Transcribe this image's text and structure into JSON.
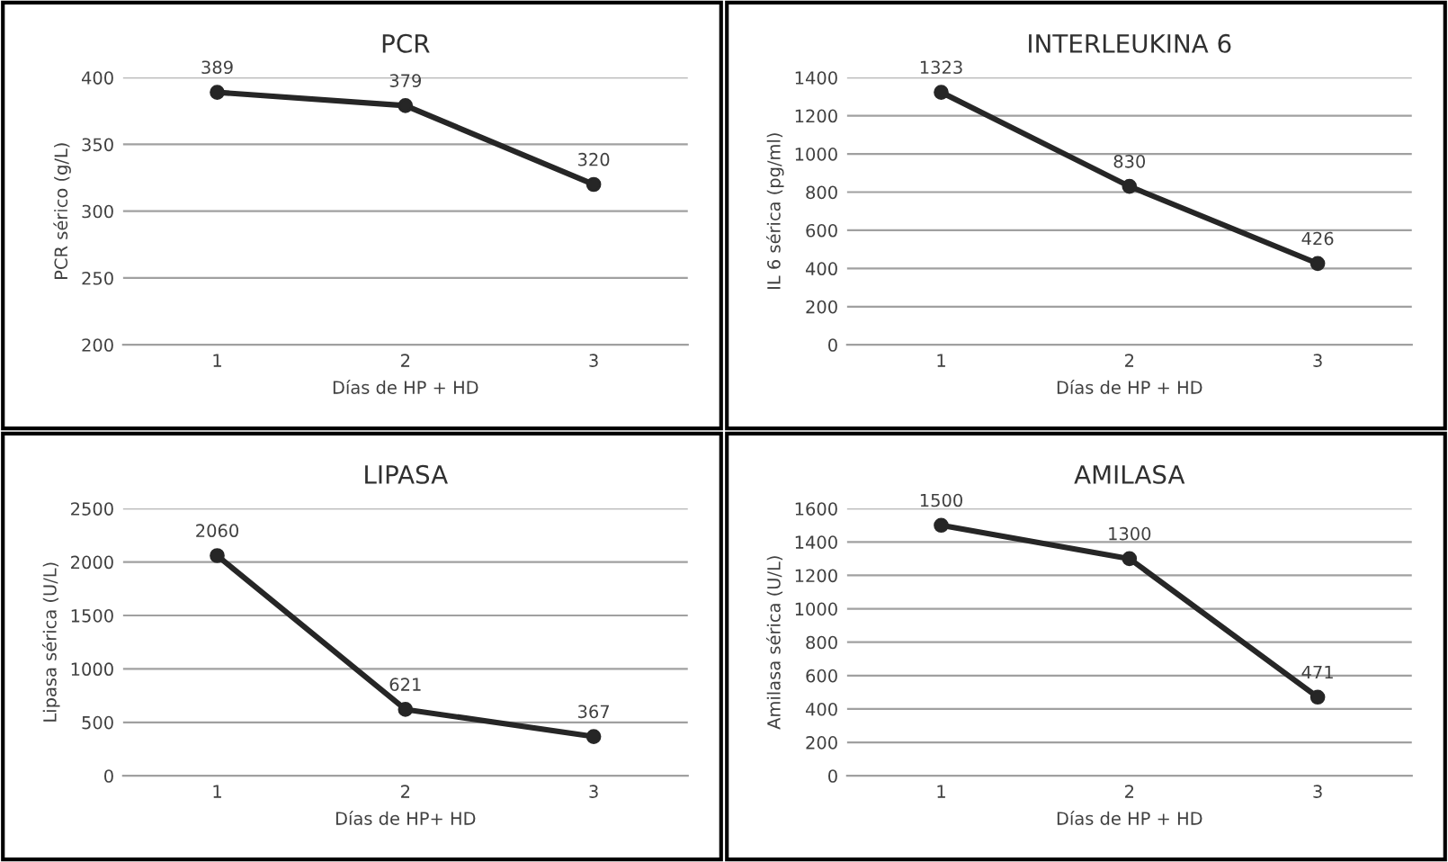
{
  "chart_data": [
    {
      "type": "line",
      "title": "PCR",
      "xlabel": "Días de HP + HD",
      "ylabel": "PCR sérico (g/L)",
      "categories": [
        "1",
        "2",
        "3"
      ],
      "series": [
        {
          "color": "#262626",
          "values": [
            389,
            379,
            320
          ]
        }
      ],
      "ylim": [
        200,
        400
      ],
      "yticks": [
        200,
        250,
        300,
        350,
        400
      ],
      "grid": "y",
      "marker": "circle",
      "data_labels": true
    },
    {
      "type": "line",
      "title": "INTERLEUKINA 6",
      "xlabel": "Días de HP + HD",
      "ylabel": "IL 6 sérica (pg/ml)",
      "categories": [
        "1",
        "2",
        "3"
      ],
      "series": [
        {
          "color": "#262626",
          "values": [
            1323,
            830,
            426
          ]
        }
      ],
      "ylim": [
        0,
        1400
      ],
      "yticks": [
        0,
        200,
        400,
        600,
        800,
        1000,
        1200,
        1400
      ],
      "grid": "y",
      "marker": "circle",
      "data_labels": true
    },
    {
      "type": "line",
      "title": "LIPASA",
      "xlabel": "Días de HP+ HD",
      "ylabel": "Lipasa sérica (U/L)",
      "categories": [
        "1",
        "2",
        "3"
      ],
      "series": [
        {
          "color": "#262626",
          "values": [
            2060,
            621,
            367
          ]
        }
      ],
      "ylim": [
        0,
        2500
      ],
      "yticks": [
        0,
        500,
        1000,
        1500,
        2000,
        2500
      ],
      "grid": "y",
      "marker": "circle",
      "data_labels": true
    },
    {
      "type": "line",
      "title": "AMILASA",
      "xlabel": "Días de HP + HD",
      "ylabel": "Amilasa sérica (U/L)",
      "categories": [
        "1",
        "2",
        "3"
      ],
      "series": [
        {
          "color": "#262626",
          "values": [
            1500,
            1300,
            471
          ]
        }
      ],
      "ylim": [
        0,
        1600
      ],
      "yticks": [
        0,
        200,
        400,
        600,
        800,
        1000,
        1200,
        1400,
        1600
      ],
      "grid": "y",
      "marker": "circle",
      "data_labels": true
    }
  ]
}
